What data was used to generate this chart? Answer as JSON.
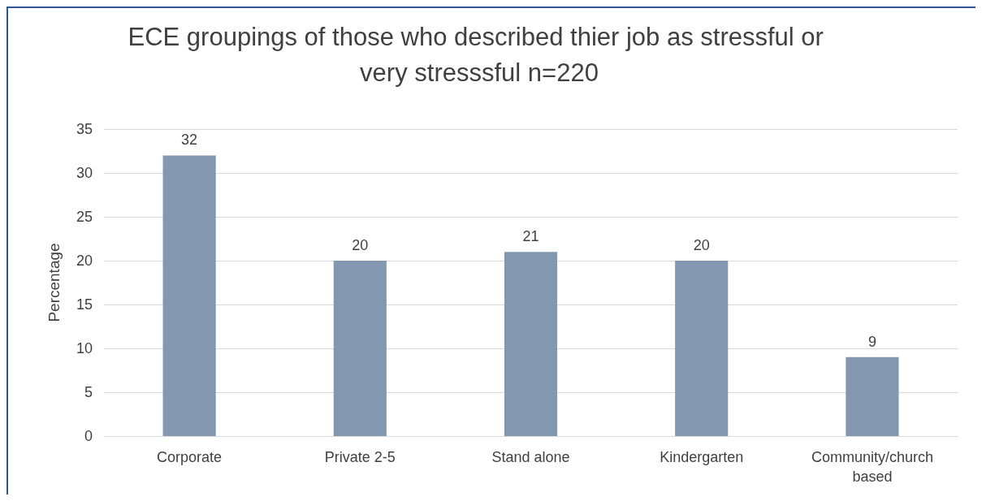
{
  "chart_data": {
    "type": "bar",
    "title": "ECE groupings of those who described thier job as stressful or very stresssful n=220",
    "ylabel": "Percentage",
    "categories": [
      "Corporate",
      "Private 2-5",
      "Stand alone",
      "Kindergarten",
      "Community/church based"
    ],
    "values": [
      32,
      20,
      21,
      20,
      9
    ],
    "color": "#8497b0",
    "ylim": [
      0,
      35
    ],
    "yticks": [
      0,
      5,
      10,
      15,
      20,
      25,
      30,
      35
    ],
    "grid": "y",
    "data_labels": true
  }
}
